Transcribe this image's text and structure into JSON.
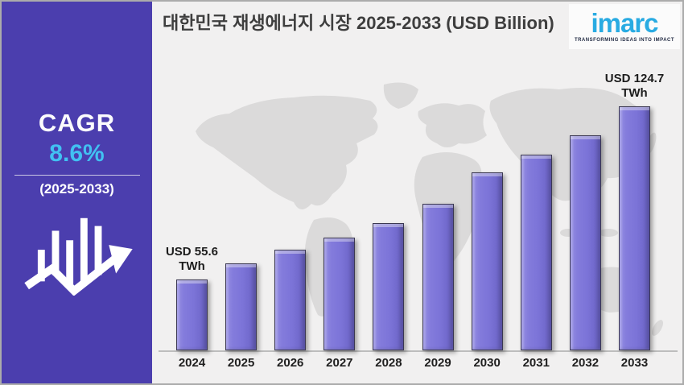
{
  "sidebar": {
    "cagr_label": "CAGR",
    "cagr_value": "8.6%",
    "cagr_period": "(2025-2033)",
    "icon": "bar-chart-growth-arrow-icon"
  },
  "header": {
    "title": "대한민국 재생에너지 시장 2025-2033 (USD Billion)"
  },
  "logo": {
    "text": "imarc",
    "tagline": "TRANSFORMING IDEAS INTO IMPACT"
  },
  "colors": {
    "sidebar_background": "#4B3EAE",
    "cagr_accent": "#41C1F2",
    "bar_fill": "#7C74D8",
    "panel_background": "#F1F0F0",
    "map_fill": "#DBDADA",
    "logo_cyan": "#29ABE2"
  },
  "chart_data": {
    "type": "bar",
    "title": "대한민국 재생에너지 시장 2025-2033 (USD Billion)",
    "unit": "TWh",
    "xlabel": "",
    "ylabel": "",
    "legend": false,
    "gridlines": false,
    "background": "world-map",
    "categories": [
      "2024",
      "2025",
      "2026",
      "2027",
      "2028",
      "2029",
      "2030",
      "2031",
      "2032",
      "2033"
    ],
    "values": [
      55.6,
      62.0,
      67.5,
      72.3,
      78.1,
      85.8,
      98.3,
      105.4,
      113.1,
      124.7
    ],
    "labeled_points": [
      {
        "index": 0,
        "line1": "USD 55.6",
        "line2": "TWh"
      },
      {
        "index": 9,
        "line1": "USD 124.7",
        "line2": "TWh"
      }
    ]
  }
}
